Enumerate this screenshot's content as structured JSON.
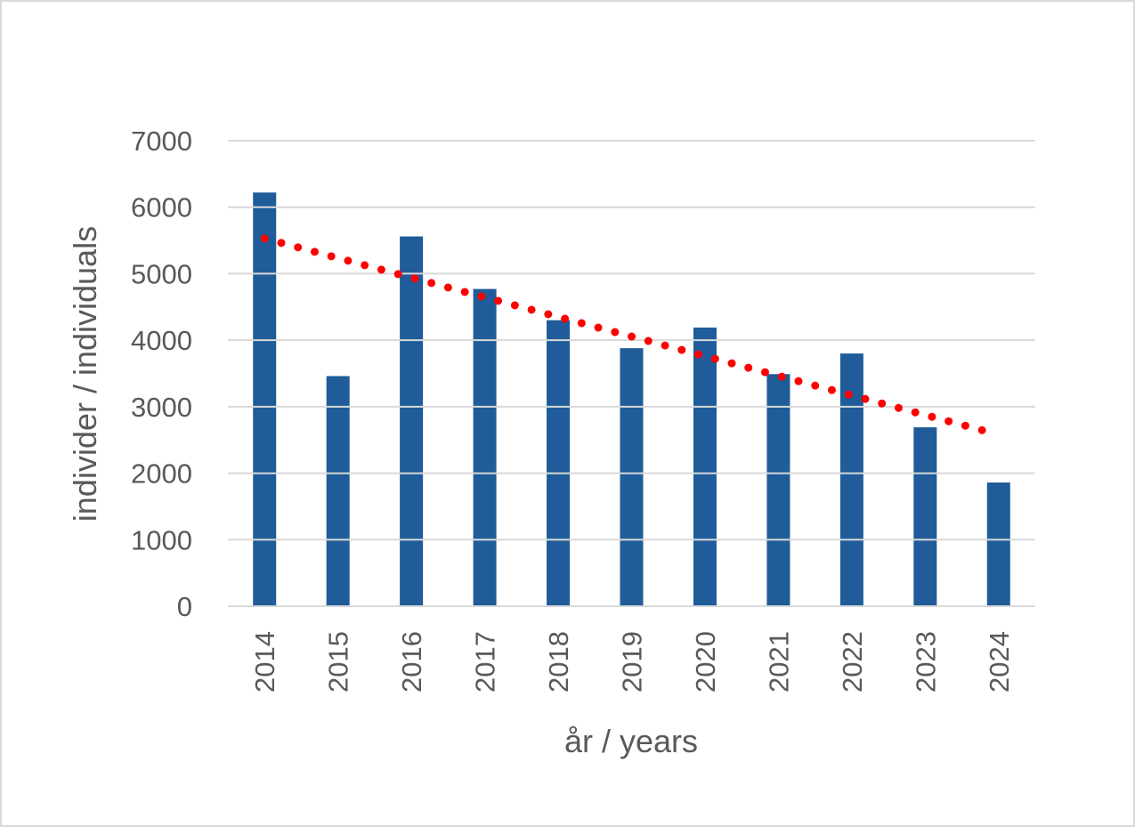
{
  "chart_data": {
    "type": "bar",
    "title": "",
    "xlabel": "år / years",
    "ylabel": "individer / individuals",
    "categories": [
      "2014",
      "2015",
      "2016",
      "2017",
      "2018",
      "2019",
      "2020",
      "2021",
      "2022",
      "2023",
      "2024"
    ],
    "series": [
      {
        "values": [
          6220,
          3460,
          5560,
          4770,
          4300,
          3880,
          4190,
          3490,
          3800,
          2690,
          1860
        ]
      }
    ],
    "trendline": {
      "type": "linear",
      "values": [
        5530,
        5235,
        4940,
        4645,
        4350,
        4055,
        3760,
        3465,
        3170,
        2875,
        2580
      ]
    },
    "ylim": [
      0,
      7000
    ],
    "yticks": [
      0,
      1000,
      2000,
      3000,
      4000,
      5000,
      6000,
      7000
    ],
    "grid": true,
    "legend": "none",
    "colors": {
      "bar": "#1f5c99",
      "trend": "#ff0000",
      "grid": "#d9d9d9",
      "text": "#595959"
    }
  }
}
